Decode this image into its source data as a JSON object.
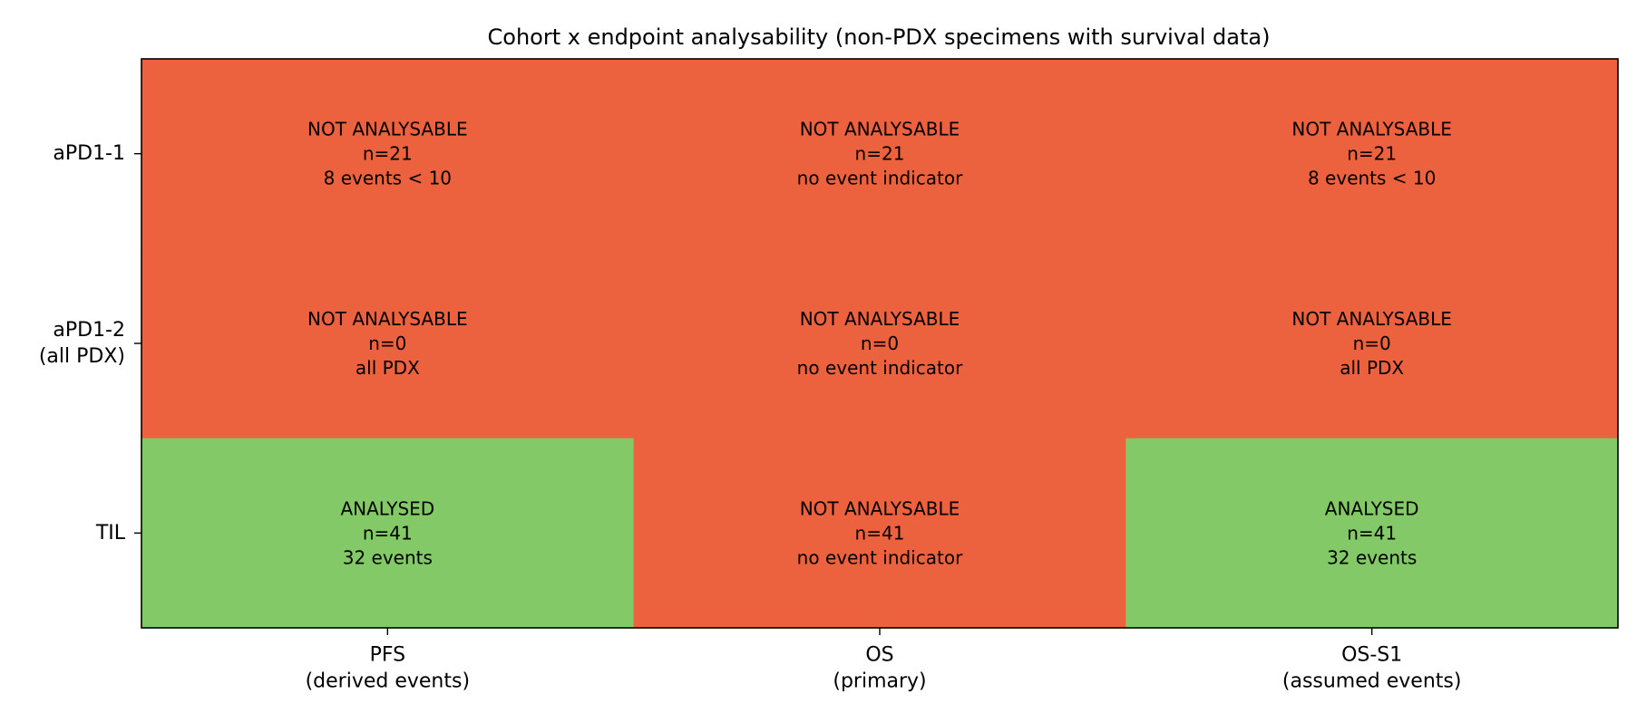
{
  "chart_data": {
    "type": "heatmap",
    "title": "Cohort x endpoint analysability (non-PDX specimens with survival data)",
    "columns": [
      {
        "lines": [
          "PFS",
          "(derived events)"
        ]
      },
      {
        "lines": [
          "OS",
          "(primary)"
        ]
      },
      {
        "lines": [
          "OS-S1",
          "(assumed events)"
        ]
      }
    ],
    "rows": [
      {
        "lines": [
          "aPD1-1"
        ]
      },
      {
        "lines": [
          "aPD1-2",
          "(all PDX)"
        ]
      },
      {
        "lines": [
          "TIL"
        ]
      }
    ],
    "cells": [
      [
        {
          "status": "NOT ANALYSABLE",
          "n": "n=21",
          "note": "8 events < 10",
          "analysed": false
        },
        {
          "status": "NOT ANALYSABLE",
          "n": "n=21",
          "note": "no event indicator",
          "analysed": false
        },
        {
          "status": "NOT ANALYSABLE",
          "n": "n=21",
          "note": "8 events < 10",
          "analysed": false
        }
      ],
      [
        {
          "status": "NOT ANALYSABLE",
          "n": "n=0",
          "note": "all PDX",
          "analysed": false
        },
        {
          "status": "NOT ANALYSABLE",
          "n": "n=0",
          "note": "no event indicator",
          "analysed": false
        },
        {
          "status": "NOT ANALYSABLE",
          "n": "n=0",
          "note": "all PDX",
          "analysed": false
        }
      ],
      [
        {
          "status": "ANALYSED",
          "n": "n=41",
          "note": "32 events",
          "analysed": true
        },
        {
          "status": "NOT ANALYSABLE",
          "n": "n=41",
          "note": "no event indicator",
          "analysed": false
        },
        {
          "status": "ANALYSED",
          "n": "n=41",
          "note": "32 events",
          "analysed": true
        }
      ]
    ],
    "colors": {
      "analysed": "#84c967",
      "not_analysable": "#ec613e",
      "frame": "#000000"
    },
    "grid": false,
    "legend": "none"
  }
}
